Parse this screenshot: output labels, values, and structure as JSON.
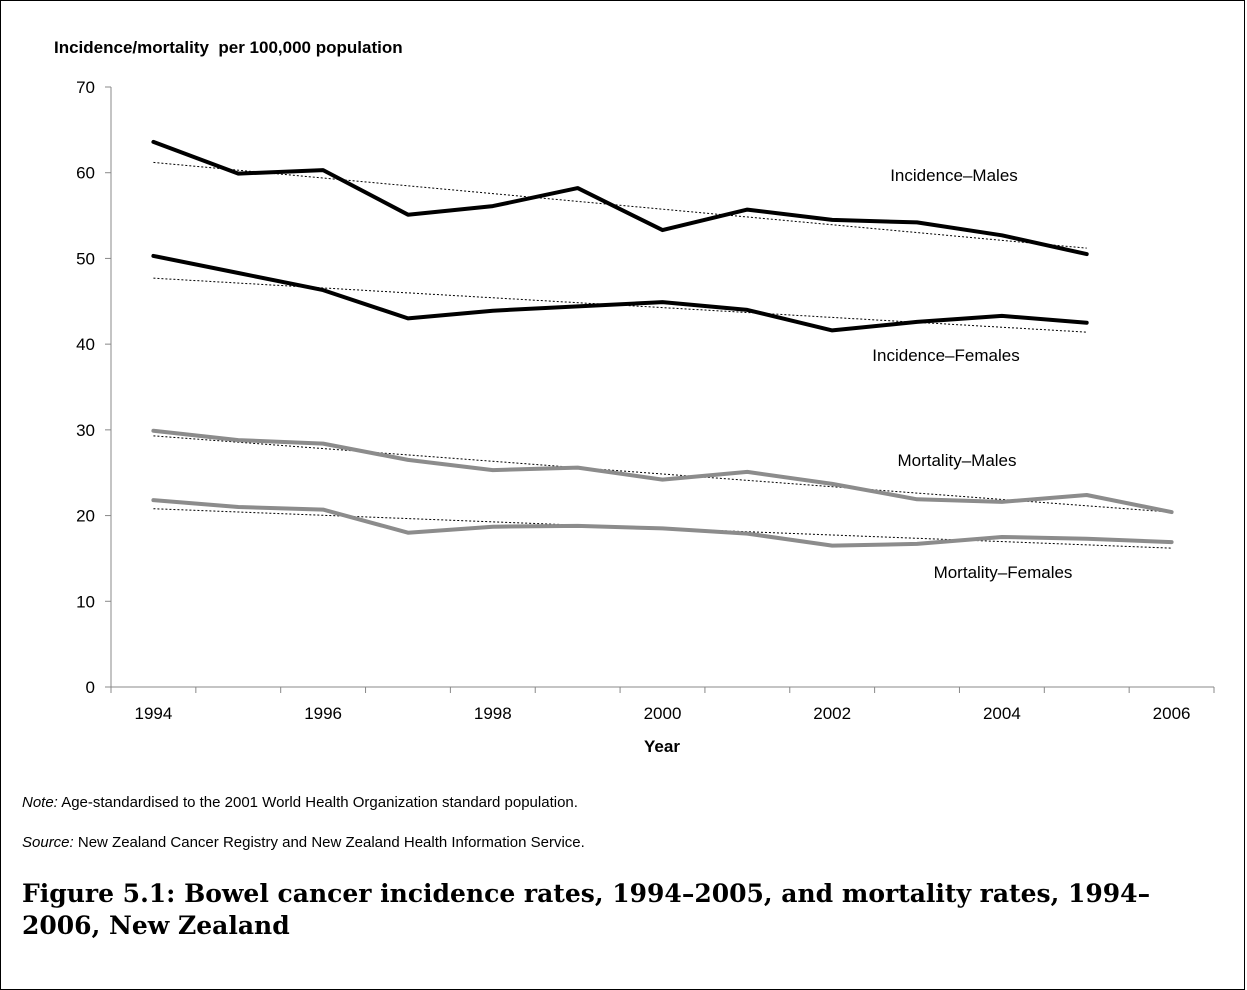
{
  "chart_data": {
    "type": "line",
    "ylabel": "Incidence/mortality  per 100,000 population",
    "xlabel": "Year",
    "ylim": [
      0,
      70
    ],
    "xlim": [
      1994,
      2006
    ],
    "yticks": [
      0,
      10,
      20,
      30,
      40,
      50,
      60,
      70
    ],
    "xticks": [
      1994,
      1996,
      1998,
      2000,
      2002,
      2004,
      2006
    ],
    "grid": false,
    "series": [
      {
        "name": "Incidence–Males",
        "color": "#000000",
        "x": [
          1994,
          1995,
          1996,
          1997,
          1998,
          1999,
          2000,
          2001,
          2002,
          2003,
          2004,
          2005
        ],
        "values": [
          63.6,
          59.9,
          60.3,
          55.1,
          56.1,
          58.2,
          53.3,
          55.7,
          54.5,
          54.2,
          52.7,
          50.5
        ],
        "trend": [
          61.2,
          51.2
        ]
      },
      {
        "name": "Incidence–Females",
        "color": "#000000",
        "x": [
          1994,
          1995,
          1996,
          1997,
          1998,
          1999,
          2000,
          2001,
          2002,
          2003,
          2004,
          2005
        ],
        "values": [
          50.3,
          48.3,
          46.3,
          43.0,
          43.9,
          44.4,
          44.9,
          44.0,
          41.6,
          42.6,
          43.3,
          42.5
        ],
        "trend": [
          47.7,
          41.4
        ]
      },
      {
        "name": "Mortality–Males",
        "color": "#8c8c8c",
        "x": [
          1994,
          1995,
          1996,
          1997,
          1998,
          1999,
          2000,
          2001,
          2002,
          2003,
          2004,
          2005,
          2006
        ],
        "values": [
          29.9,
          28.8,
          28.4,
          26.5,
          25.3,
          25.6,
          24.2,
          25.1,
          23.7,
          21.9,
          21.6,
          22.4,
          20.4
        ],
        "trend": [
          29.3,
          20.4
        ]
      },
      {
        "name": "Mortality–Females",
        "color": "#8c8c8c",
        "x": [
          1994,
          1995,
          1996,
          1997,
          1998,
          1999,
          2000,
          2001,
          2002,
          2003,
          2004,
          2005,
          2006
        ],
        "values": [
          21.8,
          21.0,
          20.7,
          18.0,
          18.7,
          18.8,
          18.5,
          17.9,
          16.5,
          16.7,
          17.5,
          17.3,
          16.9
        ],
        "trend": [
          20.8,
          16.2
        ]
      }
    ]
  },
  "note": {
    "label": "Note:",
    "text": " Age-standardised to the 2001 World Health Organization standard population."
  },
  "source": {
    "label": "Source:",
    "text": " New Zealand Cancer Registry and New Zealand Health Information Service."
  },
  "caption": "Figure 5.1: Bowel cancer incidence rates, 1994–2005, and mortality rates, 1994–2006, New Zealand"
}
